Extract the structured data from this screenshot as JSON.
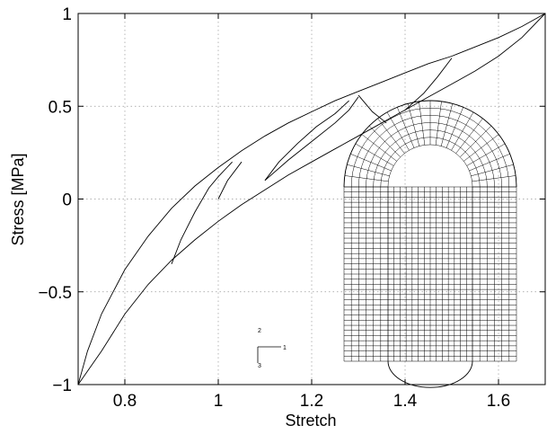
{
  "chart_data": {
    "type": "line",
    "title": "",
    "xlabel": "Stretch",
    "ylabel": "Stress  [MPa]",
    "xlim": [
      0.7,
      1.7
    ],
    "ylim": [
      -1,
      1
    ],
    "grid": true,
    "x_ticks": [
      {
        "value": 0.8,
        "label": "0.8"
      },
      {
        "value": 1.0,
        "label": "1"
      },
      {
        "value": 1.2,
        "label": "1.2"
      },
      {
        "value": 1.4,
        "label": "1.4"
      },
      {
        "value": 1.6,
        "label": "1.6"
      }
    ],
    "y_ticks": [
      {
        "value": -1.0,
        "label": "−1"
      },
      {
        "value": -0.5,
        "label": "−0.5"
      },
      {
        "value": 0.0,
        "label": "0"
      },
      {
        "value": 0.5,
        "label": "0.5"
      },
      {
        "value": 1.0,
        "label": "1"
      }
    ],
    "series": [
      {
        "values": [
          [
            0.7,
            -1.0
          ],
          [
            0.72,
            -0.82
          ],
          [
            0.75,
            -0.62
          ],
          [
            0.8,
            -0.38
          ],
          [
            0.85,
            -0.2
          ],
          [
            0.9,
            -0.05
          ],
          [
            0.95,
            0.07
          ],
          [
            1.0,
            0.17
          ],
          [
            1.05,
            0.26
          ],
          [
            1.1,
            0.34
          ],
          [
            1.15,
            0.41
          ],
          [
            1.2,
            0.47
          ],
          [
            1.25,
            0.53
          ],
          [
            1.3,
            0.58
          ],
          [
            1.35,
            0.63
          ],
          [
            1.4,
            0.68
          ],
          [
            1.45,
            0.73
          ],
          [
            1.5,
            0.77
          ],
          [
            1.55,
            0.82
          ],
          [
            1.6,
            0.87
          ],
          [
            1.65,
            0.93
          ],
          [
            1.7,
            1.0
          ]
        ]
      },
      {
        "values": [
          [
            0.7,
            -1.0
          ],
          [
            0.75,
            -0.82
          ],
          [
            0.8,
            -0.62
          ],
          [
            0.85,
            -0.46
          ],
          [
            0.9,
            -0.33
          ],
          [
            0.95,
            -0.22
          ],
          [
            1.0,
            -0.12
          ],
          [
            1.05,
            -0.03
          ],
          [
            1.1,
            0.05
          ],
          [
            1.15,
            0.13
          ],
          [
            1.2,
            0.2
          ],
          [
            1.25,
            0.27
          ],
          [
            1.3,
            0.34
          ],
          [
            1.35,
            0.41
          ],
          [
            1.4,
            0.48
          ],
          [
            1.45,
            0.55
          ],
          [
            1.5,
            0.62
          ],
          [
            1.55,
            0.69
          ],
          [
            1.6,
            0.77
          ],
          [
            1.65,
            0.87
          ],
          [
            1.7,
            1.0
          ]
        ]
      },
      {
        "values": [
          [
            1.0,
            0.0
          ],
          [
            1.02,
            0.1
          ],
          [
            1.05,
            0.2
          ]
        ]
      },
      {
        "values": [
          [
            0.9,
            -0.35
          ],
          [
            0.92,
            -0.22
          ],
          [
            0.95,
            -0.07
          ],
          [
            0.98,
            0.06
          ],
          [
            1.0,
            0.12
          ],
          [
            1.03,
            0.2
          ]
        ]
      },
      {
        "values": [
          [
            1.1,
            0.1
          ],
          [
            1.13,
            0.2
          ],
          [
            1.17,
            0.3
          ],
          [
            1.21,
            0.39
          ],
          [
            1.25,
            0.46
          ],
          [
            1.28,
            0.53
          ]
        ]
      },
      {
        "values": [
          [
            1.1,
            0.1
          ],
          [
            1.15,
            0.21
          ],
          [
            1.2,
            0.31
          ],
          [
            1.25,
            0.41
          ],
          [
            1.28,
            0.48
          ],
          [
            1.3,
            0.55
          ]
        ]
      },
      {
        "values": [
          [
            1.3,
            0.56
          ],
          [
            1.33,
            0.47
          ],
          [
            1.36,
            0.41
          ]
        ]
      },
      {
        "values": [
          [
            1.4,
            0.48
          ],
          [
            1.44,
            0.57
          ],
          [
            1.47,
            0.66
          ],
          [
            1.5,
            0.76
          ]
        ]
      }
    ]
  },
  "inset": {
    "triad_labels": [
      "2",
      "1",
      "3"
    ]
  }
}
